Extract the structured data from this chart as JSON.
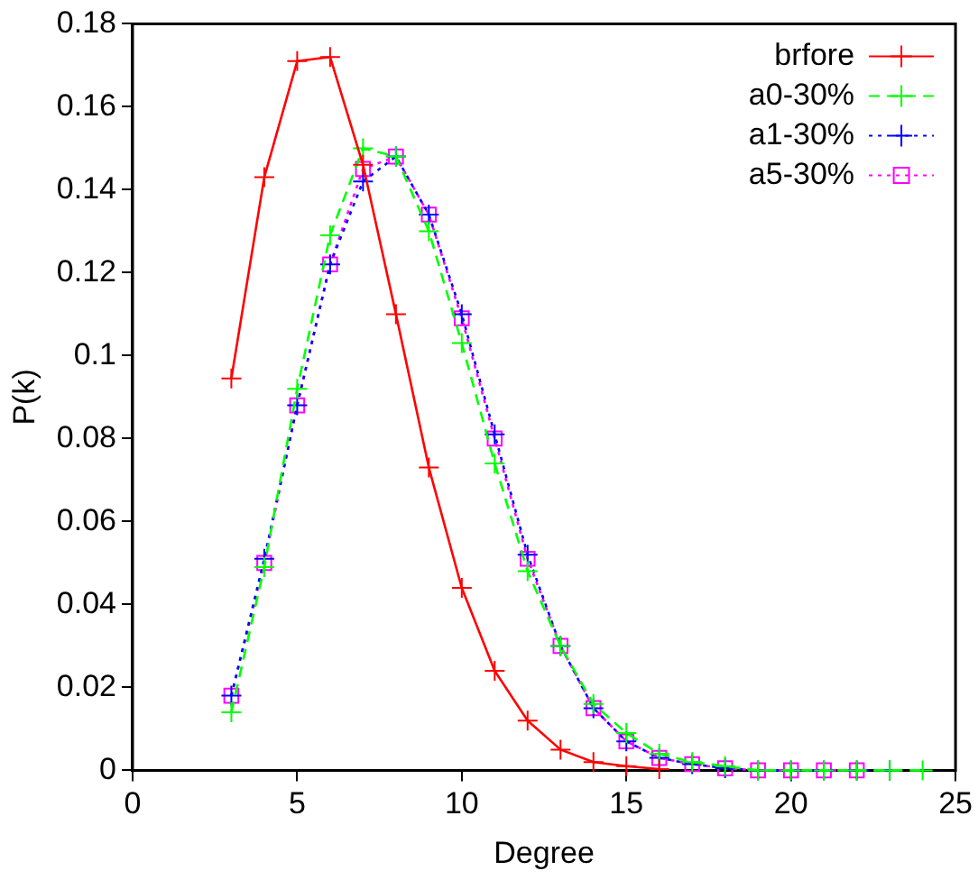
{
  "chart_data": {
    "type": "line",
    "xlabel": "Degree",
    "ylabel": "P(k)",
    "xlim": [
      0,
      25
    ],
    "xticks": [
      0,
      5,
      10,
      15,
      20,
      25
    ],
    "ylim": [
      0,
      0.18
    ],
    "yticks": [
      0,
      {
        "value": 0.02,
        "label": "0.02"
      },
      {
        "value": 0.04,
        "label": "0.04"
      },
      {
        "value": 0.06,
        "label": "0.06"
      },
      {
        "value": 0.08,
        "label": "0.08"
      },
      {
        "value": 0.1,
        "label": "0.1"
      },
      {
        "value": 0.12,
        "label": "0.12"
      },
      {
        "value": 0.14,
        "label": "0.14"
      },
      {
        "value": 0.16,
        "label": "0.16"
      },
      {
        "value": 0.18,
        "label": "0.18"
      }
    ],
    "grid": false,
    "legend": "top right",
    "series": [
      {
        "name": "brfore",
        "color": "#ff0000",
        "marker": "cross",
        "line_style": "solid",
        "x": [
          3,
          4,
          5,
          6,
          7,
          8,
          9,
          10,
          11,
          12,
          13,
          14,
          15,
          16
        ],
        "values": [
          0.0945,
          0.143,
          0.171,
          0.172,
          0.146,
          0.11,
          0.073,
          0.044,
          0.024,
          0.012,
          0.005,
          0.002,
          0.001,
          0.0003
        ]
      },
      {
        "name": "a0-30%",
        "color": "#00ff00",
        "marker": "cross",
        "line_style": "dashed",
        "x": [
          3,
          4,
          5,
          6,
          7,
          8,
          9,
          10,
          11,
          12,
          13,
          14,
          15,
          16,
          17,
          18,
          19,
          20,
          21,
          22,
          23,
          24
        ],
        "values": [
          0.014,
          0.049,
          0.092,
          0.129,
          0.15,
          0.148,
          0.13,
          0.103,
          0.074,
          0.048,
          0.03,
          0.016,
          0.009,
          0.004,
          0.002,
          0.001,
          0,
          0,
          0,
          0,
          0,
          0
        ]
      },
      {
        "name": "a1-30%",
        "color": "#0000ff",
        "marker": "cross",
        "line_style": "dotted",
        "x": [
          3,
          4,
          5,
          6,
          7,
          8,
          9,
          10,
          11,
          12,
          13,
          14,
          15,
          16,
          17,
          18,
          19,
          20,
          21,
          22,
          23
        ],
        "values": [
          0.018,
          0.051,
          0.088,
          0.122,
          0.142,
          0.148,
          0.134,
          0.11,
          0.081,
          0.052,
          0.03,
          0.015,
          0.007,
          0.003,
          0.0015,
          0.0005,
          0,
          0,
          0,
          0,
          0
        ]
      },
      {
        "name": "a5-30%",
        "color": "#ff00ff",
        "marker": "square",
        "line_style": "dotted",
        "x": [
          3,
          4,
          5,
          6,
          7,
          8,
          9,
          10,
          11,
          12,
          13,
          14,
          15,
          16,
          17,
          18,
          19,
          20,
          21,
          22
        ],
        "values": [
          0.018,
          0.05,
          0.088,
          0.122,
          0.145,
          0.148,
          0.134,
          0.109,
          0.08,
          0.051,
          0.03,
          0.015,
          0.007,
          0.003,
          0.0015,
          0.0005,
          0,
          0,
          0,
          0
        ]
      }
    ]
  }
}
